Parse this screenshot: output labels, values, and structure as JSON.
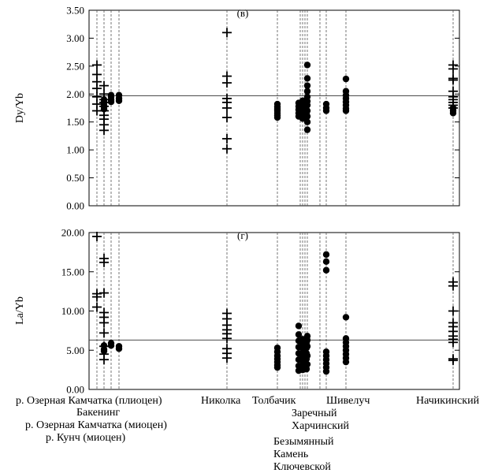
{
  "chart_data": [
    {
      "type": "scatter",
      "panel_label": "(в)",
      "ylabel": "Dy/Yb",
      "ylim": [
        0,
        3.5
      ],
      "yticks": [
        "0.00",
        "0.50",
        "1.00",
        "1.50",
        "2.00",
        "2.50",
        "3.00",
        "3.50"
      ],
      "grid": false,
      "reference_line": 1.97,
      "categories": [
        "р. Озерная Камчатка (плиоцен)",
        "Бакенинг",
        "р. Озерная Камчатка (миоцен)",
        "р. Кунч (миоцен)",
        "Николка",
        "Толбачик",
        "Заречный",
        "Харчинский",
        "Безымянный",
        "Камень",
        "Ключевской",
        "Шивелуч",
        "Начикинский"
      ],
      "series": [
        {
          "marker": "plus",
          "points": [
            {
              "site": "р. Озерная Камчатка (плиоцен)",
              "y": [
                2.52,
                2.35,
                2.22,
                2.1,
                1.95,
                1.82,
                1.7
              ]
            },
            {
              "site": "Бакенинг",
              "y": [
                2.15,
                2.0,
                1.9,
                1.85,
                1.78,
                1.7,
                1.62,
                1.55,
                1.45,
                1.35
              ]
            },
            {
              "site": "Николка",
              "y": [
                3.1,
                2.32,
                2.2,
                1.92,
                1.85,
                1.75,
                1.58,
                1.2,
                1.02
              ]
            },
            {
              "site": "Начикинский",
              "y": [
                2.52,
                2.45,
                2.28,
                2.25,
                2.05,
                1.95,
                1.9,
                1.85,
                1.8,
                1.75
              ]
            }
          ]
        },
        {
          "marker": "dot",
          "points": [
            {
              "site": "Бакенинг",
              "y": [
                1.9,
                1.85,
                1.8,
                1.77,
                1.73
              ]
            },
            {
              "site": "р. Озерная Камчатка (миоцен)",
              "y": [
                1.98,
                1.95,
                1.9,
                1.86
              ]
            },
            {
              "site": "р. Кунч (миоцен)",
              "y": [
                1.98,
                1.92,
                1.88
              ]
            },
            {
              "site": "Толбачик",
              "y": [
                1.82,
                1.77,
                1.73,
                1.7,
                1.66,
                1.62,
                1.58
              ]
            },
            {
              "site": "Заречный",
              "y": [
                1.84,
                1.78,
                1.72,
                1.66,
                1.6
              ]
            },
            {
              "site": "Харчинский",
              "y": [
                1.88,
                1.8,
                1.74,
                1.66,
                1.56
              ]
            },
            {
              "site": "Безымянный",
              "y": [
                1.9,
                1.8,
                1.72,
                1.65,
                1.6
              ]
            },
            {
              "site": "Камень",
              "y": [
                2.52,
                2.28,
                2.15,
                2.05,
                1.95,
                1.87,
                1.8,
                1.7,
                1.6,
                1.5,
                1.36
              ]
            },
            {
              "site": "Ключевской",
              "y": [
                1.82,
                1.75,
                1.7
              ]
            },
            {
              "site": "Шивелуч",
              "y": [
                2.27,
                2.05,
                1.98,
                1.92,
                1.86,
                1.8,
                1.74,
                1.7
              ]
            },
            {
              "site": "Начикинский",
              "y": [
                1.75,
                1.7,
                1.66
              ]
            }
          ]
        }
      ]
    },
    {
      "type": "scatter",
      "panel_label": "(г)",
      "ylabel": "La/Yb",
      "ylim": [
        0,
        20
      ],
      "yticks": [
        "0.00",
        "5.00",
        "10.00",
        "15.00",
        "20.00"
      ],
      "grid": false,
      "reference_line": 6.3,
      "categories": [
        "р. Озерная Камчатка (плиоцен)",
        "Бакенинг",
        "р. Озерная Камчатка (миоцен)",
        "р. Кунч (миоцен)",
        "Николка",
        "Толбачик",
        "Заречный",
        "Харчинский",
        "Безымянный",
        "Камень",
        "Ключевской",
        "Шивелуч",
        "Начикинский"
      ],
      "series": [
        {
          "marker": "plus",
          "points": [
            {
              "site": "р. Озерная Камчатка (плиоцен)",
              "y": [
                19.5,
                12.2,
                11.8,
                10.5
              ]
            },
            {
              "site": "Бакенинг",
              "y": [
                16.7,
                16.2,
                12.3,
                9.8,
                9.2,
                8.5,
                7.2,
                5.5,
                4.5,
                3.8
              ]
            },
            {
              "site": "Николка",
              "y": [
                9.7,
                9.0,
                8.2,
                7.6,
                7.1,
                6.5,
                5.2,
                4.6,
                4.0
              ]
            },
            {
              "site": "Начикинский",
              "y": [
                13.7,
                13.2,
                10.0,
                8.5,
                8.0,
                7.4,
                6.8,
                6.4,
                6.0,
                3.9,
                3.7
              ]
            }
          ]
        },
        {
          "marker": "dot",
          "points": [
            {
              "site": "Бакенинг",
              "y": [
                5.6,
                5.1,
                4.9
              ]
            },
            {
              "site": "р. Озерная Камчатка (миоцен)",
              "y": [
                5.9,
                5.6
              ]
            },
            {
              "site": "р. Кунч (миоцен)",
              "y": [
                5.5,
                5.2
              ]
            },
            {
              "site": "Толбачик",
              "y": [
                5.3,
                4.8,
                4.3,
                3.9,
                3.5,
                3.1,
                2.8
              ]
            },
            {
              "site": "Заречный",
              "y": [
                8.1,
                7.0,
                6.2,
                5.4,
                4.6,
                3.8,
                3.0,
                2.4
              ]
            },
            {
              "site": "Харчинский",
              "y": [
                6.4,
                5.9,
                5.3,
                4.7,
                4.1,
                3.6,
                3.0,
                2.5
              ]
            },
            {
              "site": "Безымянный",
              "y": [
                6.0,
                5.3,
                4.6,
                3.9,
                3.2,
                2.6
              ]
            },
            {
              "site": "Камень",
              "y": [
                6.8,
                6.3,
                5.5,
                4.3,
                3.2
              ]
            },
            {
              "site": "Ключевской",
              "y": [
                17.2,
                16.3,
                15.2,
                4.8,
                4.3,
                3.8,
                3.3,
                2.8,
                2.3
              ]
            },
            {
              "site": "Шивелуч",
              "y": [
                9.2,
                6.5,
                6.0,
                5.5,
                5.0,
                4.5,
                4.0,
                3.5
              ]
            }
          ]
        }
      ]
    }
  ],
  "x_labels": {
    "row1": [
      "р. Озерная Камчатка (плиоцен)",
      "Николка",
      "Толбачик",
      "Шивелуч",
      "Начикинский"
    ],
    "row2": [
      "Бакенинг",
      "Заречный"
    ],
    "row3": [
      "р. Озерная Камчатка (миоцен)",
      "Харчинский"
    ],
    "row4": [
      "р. Кунч (миоцен)"
    ],
    "row5": [
      "Безымянный"
    ],
    "row6": [
      "Камень"
    ],
    "row7": [
      "Ключевской"
    ]
  }
}
